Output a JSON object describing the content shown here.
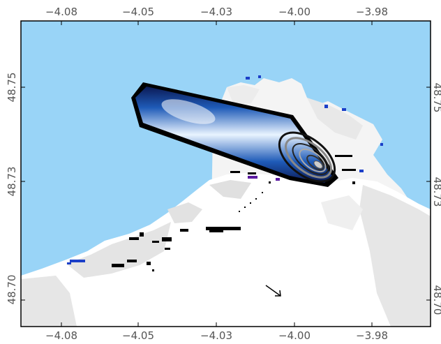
{
  "map": {
    "axes": {
      "top_ticks": [
        "−4.08",
        "−4.05",
        "−4.03",
        "−4.00",
        "−3.98"
      ],
      "bottom_ticks": [
        "−4.08",
        "−4.05",
        "−4.03",
        "−4.00",
        "−3.98"
      ],
      "left_ticks": [
        "48.75",
        "48.73",
        "48.70"
      ],
      "right_ticks": [
        "48.75",
        "48.73",
        "48.70"
      ]
    },
    "colors": {
      "sea": "#99d4f7",
      "land": "#ffffff",
      "land_shade": "#dcdcdc",
      "plume_dark": "#0b1a55",
      "plume_mid": "#2a78d0",
      "plume_light": "#e9f4ff",
      "frame": "#000000"
    },
    "features": [
      "sea-area",
      "coastline-land",
      "blue-plume",
      "concentric-rings-source",
      "black-rocks",
      "direction-arrow-icon"
    ]
  }
}
